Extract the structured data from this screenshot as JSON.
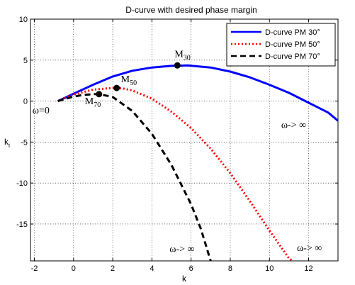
{
  "chart_data": {
    "type": "line",
    "title": "D-curve with desired phase margin",
    "xlabel": "k",
    "ylabel": "k",
    "ylabel_sub": "i",
    "xlim": [
      -2.2,
      13.5
    ],
    "ylim": [
      -19.5,
      10
    ],
    "xticks": [
      -2,
      0,
      2,
      4,
      6,
      8,
      10,
      12
    ],
    "yticks": [
      -15,
      -10,
      -5,
      0,
      5,
      10
    ],
    "grid": true,
    "legend_position": "top-right",
    "series": [
      {
        "name": "D-curve PM 30°",
        "color": "#0000ff",
        "dash": "solid",
        "x": [
          -0.8,
          0,
          1,
          2,
          3,
          4,
          5,
          5.8,
          7,
          8,
          9,
          10,
          11,
          12,
          13,
          13.5
        ],
        "y": [
          0,
          0.9,
          2.0,
          3.0,
          3.7,
          4.1,
          4.3,
          4.35,
          4.1,
          3.6,
          2.9,
          2.0,
          1.0,
          -0.2,
          -1.4,
          -2.4
        ]
      },
      {
        "name": "D-curve PM 50°",
        "color": "#ff0000",
        "dash": "dot",
        "x": [
          -0.8,
          0,
          1,
          2,
          2.5,
          3,
          4,
          5,
          6,
          7,
          8,
          9,
          10,
          11,
          11.2
        ],
        "y": [
          0,
          0.8,
          1.4,
          1.6,
          1.55,
          1.3,
          0.3,
          -1.3,
          -3.3,
          -5.8,
          -8.8,
          -12.2,
          -15.8,
          -19.2,
          -19.5
        ]
      },
      {
        "name": "D-curve PM 70°",
        "color": "#000000",
        "dash": "dash",
        "x": [
          -0.8,
          0,
          0.5,
          1,
          1.3,
          2,
          3,
          4,
          5,
          6,
          6.5,
          7
        ],
        "y": [
          0,
          0.55,
          0.75,
          0.85,
          0.85,
          0.5,
          -1.2,
          -4.0,
          -7.8,
          -12.6,
          -15.6,
          -19.5
        ]
      }
    ],
    "markers": [
      {
        "label": "M",
        "sub": "30",
        "x": 5.3,
        "y": 4.35
      },
      {
        "label": "M",
        "sub": "50",
        "x": 2.2,
        "y": 1.6
      },
      {
        "label": "M",
        "sub": "70",
        "x": 1.3,
        "y": 0.85
      }
    ],
    "annotations": [
      {
        "text": "ω=0",
        "x": -2.1,
        "y": -1.5
      },
      {
        "text": "ω-> ∞",
        "x": 10.6,
        "y": -3.3
      },
      {
        "text": "ω-> ∞",
        "x": 4.9,
        "y": -18.4
      },
      {
        "text": "ω-> ∞",
        "x": 11.4,
        "y": -18.3
      }
    ]
  }
}
